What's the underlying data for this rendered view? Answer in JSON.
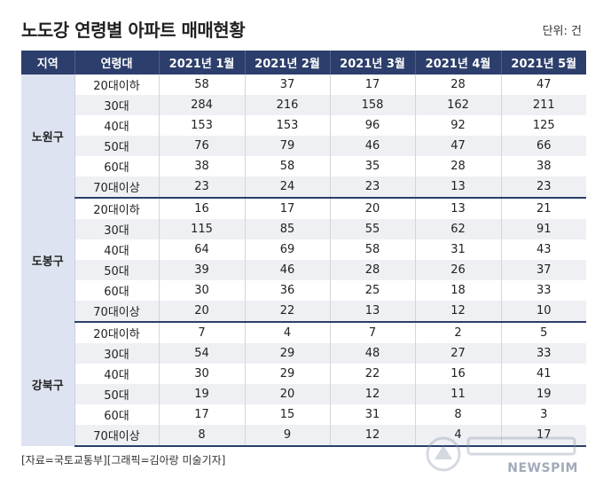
{
  "title": "노도강 연령별 아파트 매매현황",
  "unit": "단위: 건",
  "headers": [
    "지역",
    "연령대",
    "2021년 1월",
    "2021년 2월",
    "2021년 3월",
    "2021년 4월",
    "2021년 5월"
  ],
  "ages": [
    "20대이하",
    "30대",
    "40대",
    "50대",
    "60대",
    "70대이상"
  ],
  "groups": [
    {
      "region": "노원구",
      "rows": [
        [
          58,
          37,
          17,
          28,
          47
        ],
        [
          284,
          216,
          158,
          162,
          211
        ],
        [
          153,
          153,
          96,
          92,
          125
        ],
        [
          76,
          79,
          46,
          47,
          66
        ],
        [
          38,
          58,
          35,
          28,
          38
        ],
        [
          23,
          24,
          23,
          13,
          23
        ]
      ]
    },
    {
      "region": "도봉구",
      "rows": [
        [
          16,
          17,
          20,
          13,
          21
        ],
        [
          115,
          85,
          55,
          62,
          91
        ],
        [
          64,
          69,
          58,
          31,
          43
        ],
        [
          39,
          46,
          28,
          26,
          37
        ],
        [
          30,
          36,
          25,
          18,
          33
        ],
        [
          20,
          22,
          13,
          12,
          10
        ]
      ]
    },
    {
      "region": "강북구",
      "rows": [
        [
          7,
          4,
          7,
          2,
          5
        ],
        [
          54,
          29,
          48,
          27,
          33
        ],
        [
          30,
          29,
          22,
          16,
          41
        ],
        [
          19,
          20,
          12,
          11,
          19
        ],
        [
          17,
          15,
          31,
          8,
          3
        ],
        [
          8,
          9,
          12,
          4,
          17
        ]
      ]
    }
  ],
  "source": "[자료=국토교통부][그래픽=김아랑 미술기자]",
  "watermark": "NEWSPIM"
}
